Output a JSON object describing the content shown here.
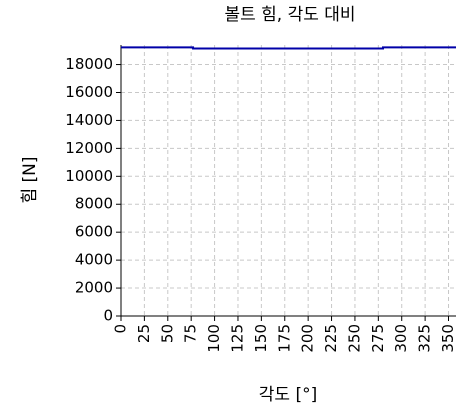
{
  "chart_data": {
    "type": "line",
    "title": "볼트 힘, 각도 대비",
    "xlabel": "각도 [°]",
    "ylabel": "힘 [N]",
    "x": [
      0,
      77,
      77,
      280,
      280,
      358
    ],
    "series": [
      {
        "name": "볼트 힘",
        "color": "#0000a8",
        "values": [
          19230,
          19230,
          19150,
          19150,
          19230,
          19230
        ]
      }
    ],
    "xlim": [
      0,
      358
    ],
    "ylim": [
      0,
      19400
    ],
    "xticks": [
      0,
      25,
      50,
      75,
      100,
      125,
      150,
      175,
      200,
      225,
      250,
      275,
      300,
      325,
      350
    ],
    "yticks": [
      0,
      2000,
      4000,
      6000,
      8000,
      10000,
      12000,
      14000,
      16000,
      18000
    ],
    "grid": true
  }
}
